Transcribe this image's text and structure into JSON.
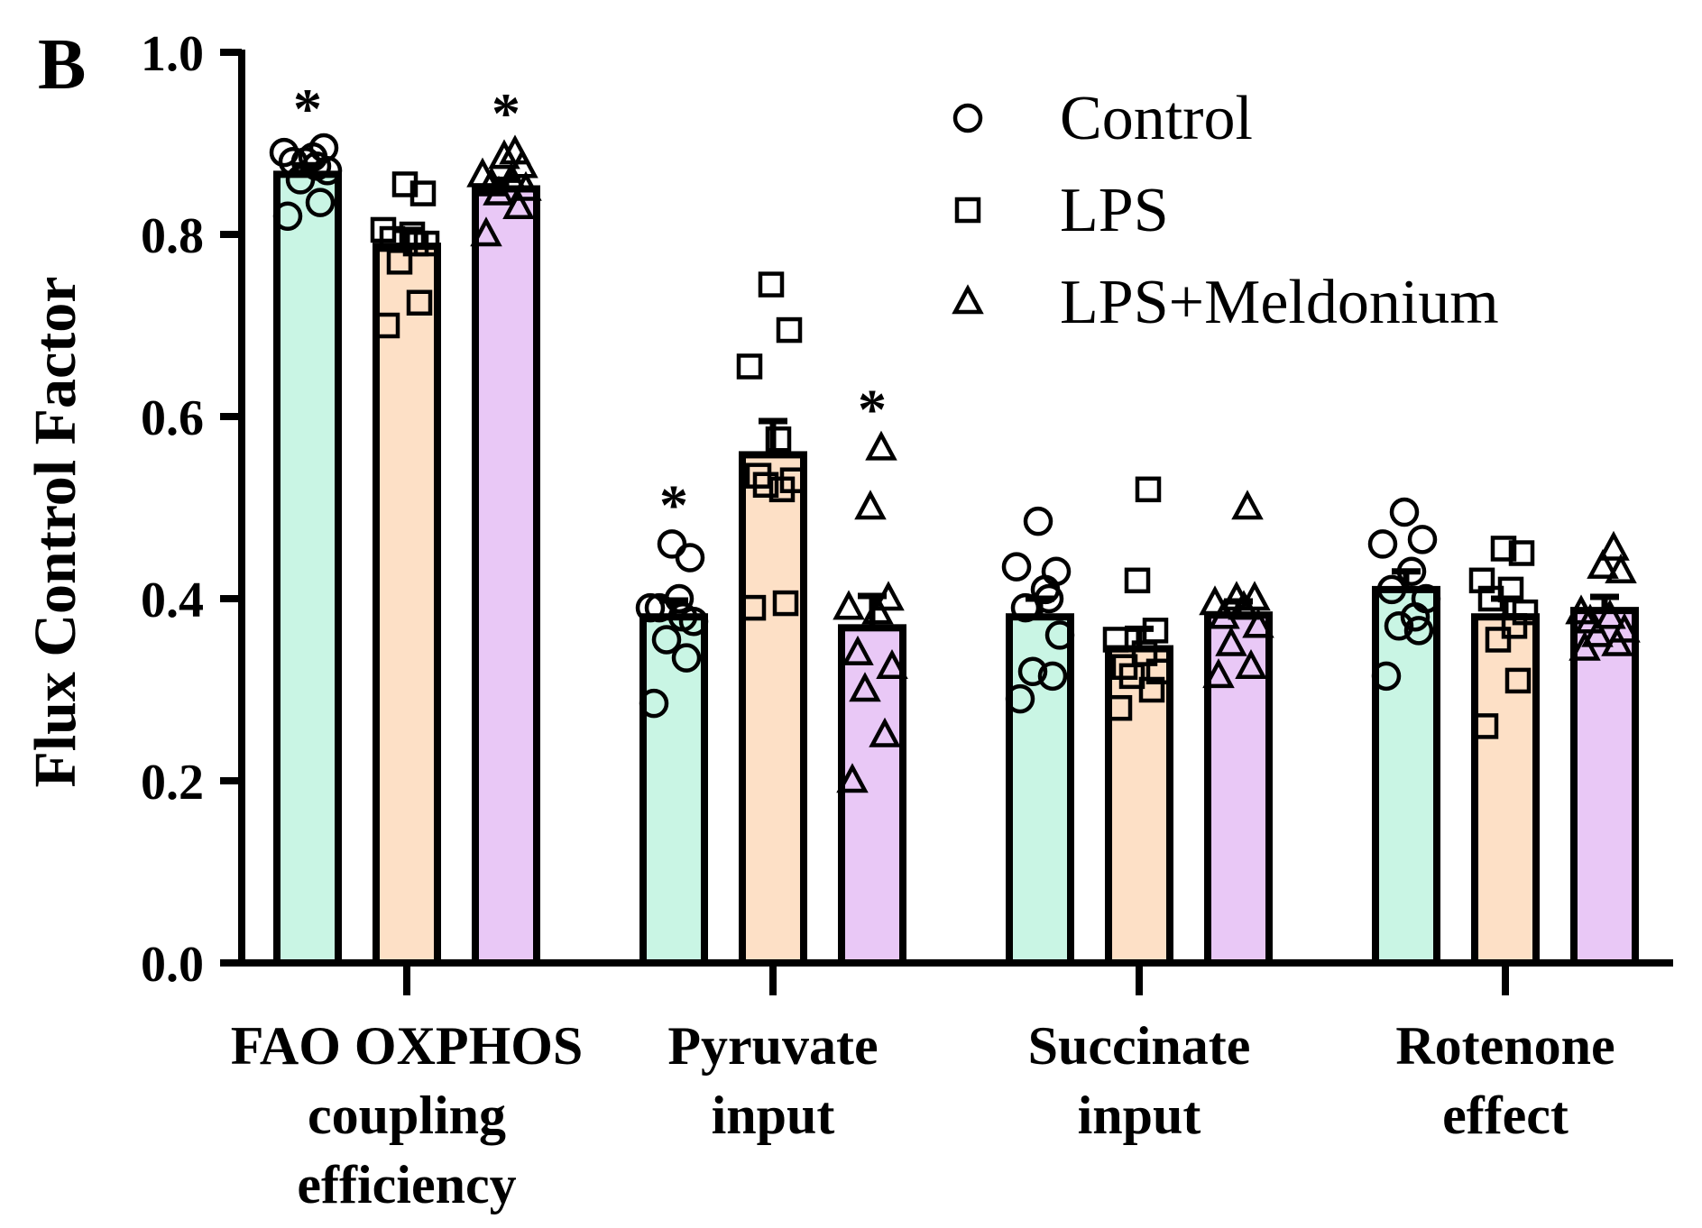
{
  "panel_label": "B",
  "chart_data": {
    "type": "bar",
    "title": "",
    "xlabel": "",
    "ylabel": "Flux Control Factor",
    "ylim": [
      0,
      1.0
    ],
    "yticks": [
      "0.0",
      "0.2",
      "0.4",
      "0.6",
      "0.8",
      "1.0"
    ],
    "categories": [
      {
        "lines": [
          "FAO OXPHOS",
          "coupling",
          "efficiency"
        ]
      },
      {
        "lines": [
          "Pyruvate",
          "input"
        ]
      },
      {
        "lines": [
          "Succinate",
          "input"
        ]
      },
      {
        "lines": [
          "Rotenone",
          "effect"
        ]
      }
    ],
    "legend_position": "top-right",
    "series": [
      {
        "name": "Control",
        "marker": "circle",
        "color": "#c9f5e4",
        "values": [
          0.866,
          0.38,
          0.38,
          0.41
        ],
        "sem": [
          0.01,
          0.018,
          0.02,
          0.02
        ],
        "significant": [
          true,
          true,
          false,
          false
        ],
        "points": [
          [
            0.82,
            0.835,
            0.86,
            0.87,
            0.88,
            0.885,
            0.89,
            0.895,
            0.88,
            0.875
          ],
          [
            0.285,
            0.335,
            0.355,
            0.375,
            0.39,
            0.4,
            0.39,
            0.445,
            0.46,
            0.38
          ],
          [
            0.29,
            0.315,
            0.32,
            0.36,
            0.39,
            0.41,
            0.435,
            0.43,
            0.485,
            0.4
          ],
          [
            0.315,
            0.365,
            0.37,
            0.4,
            0.41,
            0.43,
            0.46,
            0.465,
            0.495,
            0.38
          ]
        ]
      },
      {
        "name": "LPS",
        "marker": "square",
        "color": "#fde0c6",
        "values": [
          0.787,
          0.558,
          0.345,
          0.38
        ],
        "sem": [
          0.018,
          0.037,
          0.022,
          0.02
        ],
        "significant": [
          false,
          false,
          false,
          false
        ],
        "points": [
          [
            0.7,
            0.725,
            0.77,
            0.79,
            0.795,
            0.8,
            0.805,
            0.845,
            0.855,
            0.79
          ],
          [
            0.39,
            0.395,
            0.525,
            0.53,
            0.535,
            0.575,
            0.655,
            0.695,
            0.745,
            0.52
          ],
          [
            0.28,
            0.3,
            0.315,
            0.32,
            0.325,
            0.34,
            0.355,
            0.365,
            0.42,
            0.52
          ],
          [
            0.26,
            0.31,
            0.355,
            0.385,
            0.4,
            0.41,
            0.42,
            0.45,
            0.455,
            0.37
          ]
        ]
      },
      {
        "name": "LPS+Meldonium",
        "marker": "triangle",
        "color": "#e9c8f6",
        "values": [
          0.85,
          0.368,
          0.382,
          0.387
        ],
        "sem": [
          0.01,
          0.035,
          0.015,
          0.015
        ],
        "significant": [
          true,
          true,
          false,
          false
        ],
        "points": [
          [
            0.8,
            0.83,
            0.845,
            0.85,
            0.855,
            0.86,
            0.865,
            0.875,
            0.885,
            0.89
          ],
          [
            0.2,
            0.25,
            0.3,
            0.325,
            0.34,
            0.385,
            0.39,
            0.4,
            0.5,
            0.565
          ],
          [
            0.315,
            0.325,
            0.35,
            0.37,
            0.38,
            0.39,
            0.395,
            0.4,
            0.4,
            0.5
          ],
          [
            0.345,
            0.35,
            0.36,
            0.365,
            0.375,
            0.38,
            0.385,
            0.43,
            0.435,
            0.455
          ]
        ]
      }
    ]
  }
}
